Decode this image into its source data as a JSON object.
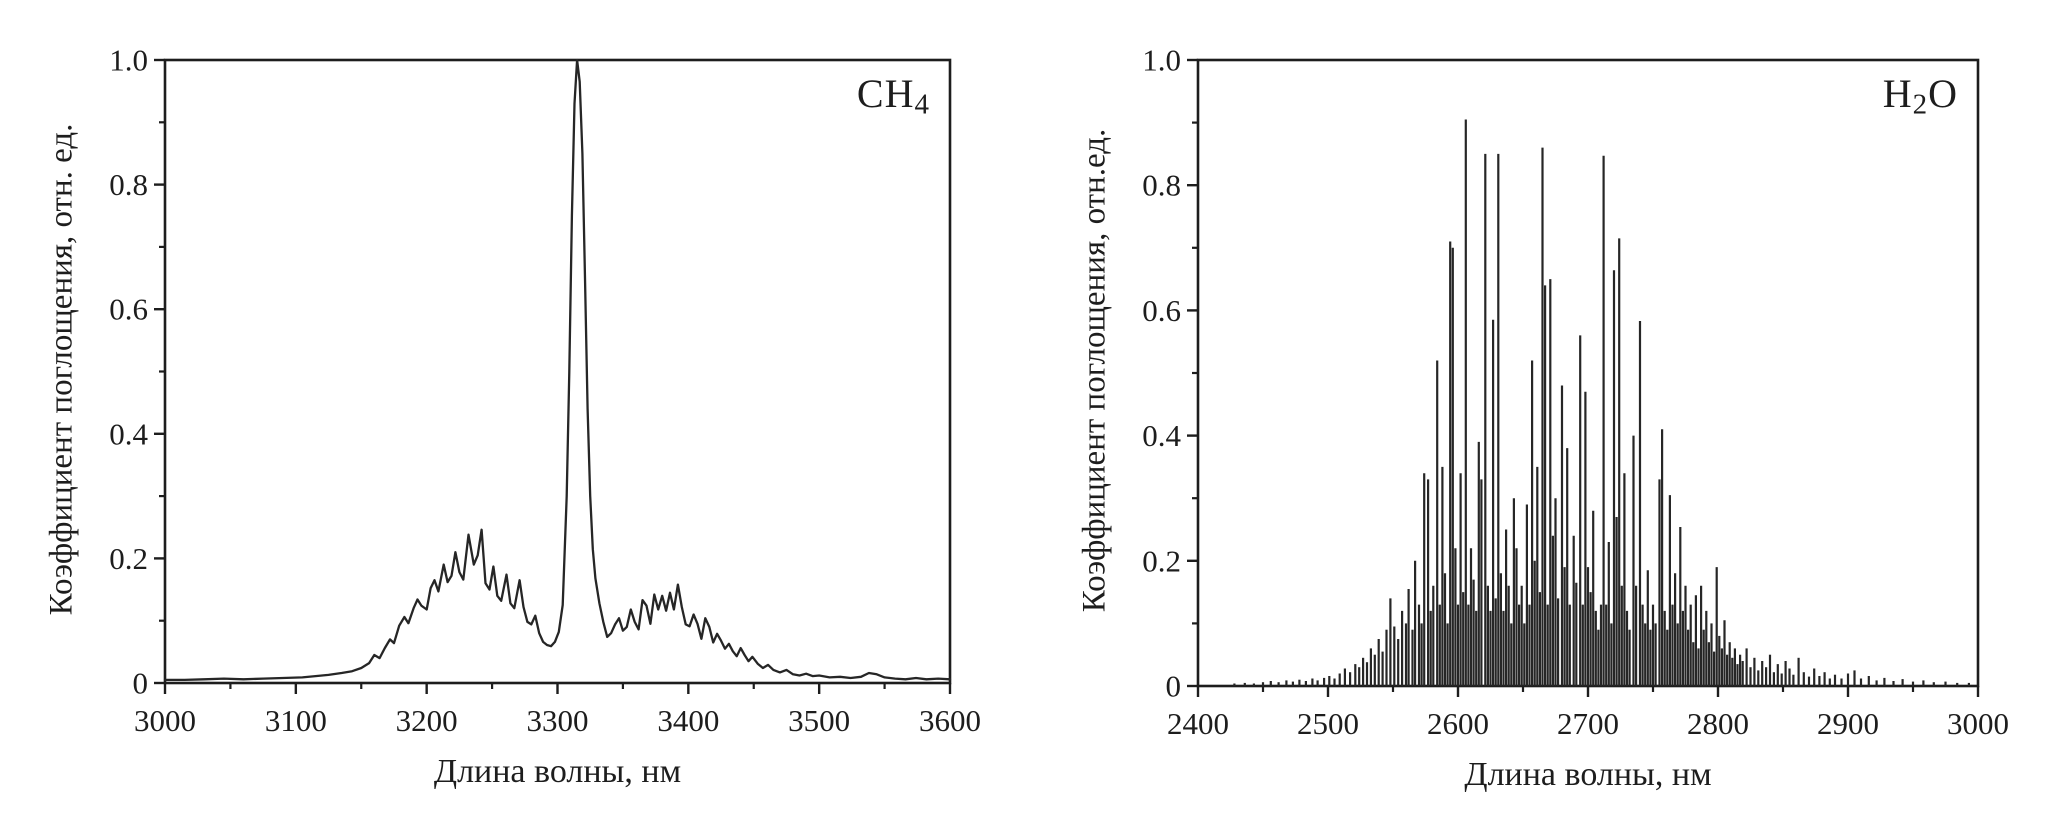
{
  "meta": {
    "background": "#ffffff",
    "ink": "#1d1d1d",
    "curve_color": "#262626"
  },
  "chart_data": [
    {
      "id": "ch4",
      "type": "line",
      "corner_label": {
        "pre": "CH",
        "sub": "4",
        "post": ""
      },
      "xlabel": "Длина волны, нм",
      "ylabel": "Коэффициент поглощения, отн. ед.",
      "xlim": [
        3000,
        3600
      ],
      "ylim": [
        0,
        1.0
      ],
      "x_major_ticks": [
        3000,
        3100,
        3200,
        3300,
        3400,
        3500,
        3600
      ],
      "x_minor_step": 50,
      "y_major_ticks": [
        0,
        0.2,
        0.4,
        0.6,
        0.8,
        1.0
      ],
      "y_tick_labels": [
        "0",
        "0.2",
        "0.4",
        "0.6",
        "0.8",
        "1.0"
      ],
      "y_minor_step": 0.1,
      "grid": false,
      "points": [
        [
          3000,
          0.005
        ],
        [
          3015,
          0.005
        ],
        [
          3030,
          0.006
        ],
        [
          3045,
          0.007
        ],
        [
          3060,
          0.006
        ],
        [
          3075,
          0.007
        ],
        [
          3090,
          0.008
        ],
        [
          3105,
          0.009
        ],
        [
          3115,
          0.011
        ],
        [
          3125,
          0.013
        ],
        [
          3135,
          0.016
        ],
        [
          3143,
          0.019
        ],
        [
          3150,
          0.024
        ],
        [
          3156,
          0.032
        ],
        [
          3160,
          0.045
        ],
        [
          3164,
          0.04
        ],
        [
          3168,
          0.056
        ],
        [
          3172,
          0.07
        ],
        [
          3175,
          0.064
        ],
        [
          3179,
          0.092
        ],
        [
          3183,
          0.106
        ],
        [
          3186,
          0.096
        ],
        [
          3190,
          0.12
        ],
        [
          3193,
          0.134
        ],
        [
          3196,
          0.124
        ],
        [
          3200,
          0.118
        ],
        [
          3203,
          0.152
        ],
        [
          3206,
          0.165
        ],
        [
          3209,
          0.147
        ],
        [
          3213,
          0.19
        ],
        [
          3216,
          0.162
        ],
        [
          3219,
          0.172
        ],
        [
          3222,
          0.21
        ],
        [
          3225,
          0.178
        ],
        [
          3228,
          0.166
        ],
        [
          3232,
          0.238
        ],
        [
          3236,
          0.19
        ],
        [
          3239,
          0.205
        ],
        [
          3242,
          0.246
        ],
        [
          3245,
          0.16
        ],
        [
          3248,
          0.15
        ],
        [
          3251,
          0.187
        ],
        [
          3254,
          0.14
        ],
        [
          3257,
          0.132
        ],
        [
          3261,
          0.174
        ],
        [
          3264,
          0.128
        ],
        [
          3267,
          0.12
        ],
        [
          3271,
          0.165
        ],
        [
          3274,
          0.122
        ],
        [
          3277,
          0.098
        ],
        [
          3280,
          0.094
        ],
        [
          3283,
          0.108
        ],
        [
          3286,
          0.08
        ],
        [
          3289,
          0.066
        ],
        [
          3292,
          0.061
        ],
        [
          3295,
          0.059
        ],
        [
          3298,
          0.066
        ],
        [
          3301,
          0.082
        ],
        [
          3304,
          0.125
        ],
        [
          3307,
          0.3
        ],
        [
          3309,
          0.5
        ],
        [
          3311,
          0.75
        ],
        [
          3313,
          0.93
        ],
        [
          3315,
          1.0
        ],
        [
          3317,
          0.965
        ],
        [
          3319,
          0.85
        ],
        [
          3321,
          0.65
        ],
        [
          3323,
          0.44
        ],
        [
          3325,
          0.3
        ],
        [
          3327,
          0.215
        ],
        [
          3329,
          0.168
        ],
        [
          3332,
          0.128
        ],
        [
          3335,
          0.098
        ],
        [
          3338,
          0.074
        ],
        [
          3341,
          0.08
        ],
        [
          3344,
          0.094
        ],
        [
          3347,
          0.104
        ],
        [
          3350,
          0.084
        ],
        [
          3353,
          0.09
        ],
        [
          3356,
          0.118
        ],
        [
          3359,
          0.098
        ],
        [
          3362,
          0.086
        ],
        [
          3365,
          0.133
        ],
        [
          3368,
          0.124
        ],
        [
          3371,
          0.095
        ],
        [
          3374,
          0.142
        ],
        [
          3377,
          0.118
        ],
        [
          3380,
          0.14
        ],
        [
          3383,
          0.116
        ],
        [
          3386,
          0.145
        ],
        [
          3389,
          0.118
        ],
        [
          3392,
          0.158
        ],
        [
          3395,
          0.122
        ],
        [
          3398,
          0.094
        ],
        [
          3401,
          0.091
        ],
        [
          3404,
          0.11
        ],
        [
          3407,
          0.095
        ],
        [
          3410,
          0.071
        ],
        [
          3413,
          0.104
        ],
        [
          3416,
          0.09
        ],
        [
          3419,
          0.065
        ],
        [
          3422,
          0.079
        ],
        [
          3425,
          0.068
        ],
        [
          3428,
          0.055
        ],
        [
          3431,
          0.063
        ],
        [
          3434,
          0.051
        ],
        [
          3437,
          0.043
        ],
        [
          3440,
          0.056
        ],
        [
          3443,
          0.045
        ],
        [
          3446,
          0.035
        ],
        [
          3449,
          0.042
        ],
        [
          3453,
          0.031
        ],
        [
          3457,
          0.024
        ],
        [
          3461,
          0.029
        ],
        [
          3465,
          0.021
        ],
        [
          3470,
          0.017
        ],
        [
          3475,
          0.021
        ],
        [
          3480,
          0.014
        ],
        [
          3485,
          0.012
        ],
        [
          3490,
          0.015
        ],
        [
          3495,
          0.011
        ],
        [
          3500,
          0.012
        ],
        [
          3508,
          0.009
        ],
        [
          3516,
          0.01
        ],
        [
          3524,
          0.008
        ],
        [
          3532,
          0.01
        ],
        [
          3538,
          0.016
        ],
        [
          3544,
          0.014
        ],
        [
          3550,
          0.009
        ],
        [
          3558,
          0.007
        ],
        [
          3566,
          0.006
        ],
        [
          3574,
          0.008
        ],
        [
          3582,
          0.006
        ],
        [
          3591,
          0.007
        ],
        [
          3600,
          0.006
        ]
      ]
    },
    {
      "id": "h2o",
      "type": "stick",
      "corner_label": {
        "pre": "H",
        "sub": "2",
        "post": "O"
      },
      "xlabel": "Длина волны, нм",
      "ylabel": "Коэффициент поглощения, отн.ед.",
      "xlim": [
        2400,
        3000
      ],
      "ylim": [
        0,
        1.0
      ],
      "x_major_ticks": [
        2400,
        2500,
        2600,
        2700,
        2800,
        2900,
        3000
      ],
      "x_minor_step": 50,
      "y_major_ticks": [
        0,
        0.2,
        0.4,
        0.6,
        0.8,
        1.0
      ],
      "y_tick_labels": [
        "0",
        "0.2",
        "0.4",
        "0.6",
        "0.8",
        "1.0"
      ],
      "y_minor_step": 0.1,
      "grid": false,
      "lines": [
        [
          2428,
          0.004
        ],
        [
          2436,
          0.005
        ],
        [
          2443,
          0.004
        ],
        [
          2450,
          0.006
        ],
        [
          2456,
          0.008
        ],
        [
          2462,
          0.006
        ],
        [
          2468,
          0.009
        ],
        [
          2473,
          0.007
        ],
        [
          2478,
          0.01
        ],
        [
          2483,
          0.008
        ],
        [
          2488,
          0.012
        ],
        [
          2492,
          0.009
        ],
        [
          2497,
          0.013
        ],
        [
          2501,
          0.016
        ],
        [
          2505,
          0.012
        ],
        [
          2509,
          0.02
        ],
        [
          2513,
          0.028
        ],
        [
          2517,
          0.022
        ],
        [
          2521,
          0.035
        ],
        [
          2524,
          0.03
        ],
        [
          2527,
          0.045
        ],
        [
          2530,
          0.038
        ],
        [
          2533,
          0.06
        ],
        [
          2536,
          0.05
        ],
        [
          2539,
          0.075
        ],
        [
          2542,
          0.055
        ],
        [
          2545,
          0.09
        ],
        [
          2548,
          0.14
        ],
        [
          2551,
          0.095
        ],
        [
          2554,
          0.075
        ],
        [
          2557,
          0.12
        ],
        [
          2560,
          0.1
        ],
        [
          2562,
          0.155
        ],
        [
          2565,
          0.09
        ],
        [
          2567,
          0.2
        ],
        [
          2570,
          0.13
        ],
        [
          2572,
          0.1
        ],
        [
          2574,
          0.34
        ],
        [
          2577,
          0.33
        ],
        [
          2579,
          0.12
        ],
        [
          2581,
          0.16
        ],
        [
          2584,
          0.52
        ],
        [
          2586,
          0.13
        ],
        [
          2588,
          0.35
        ],
        [
          2590,
          0.18
        ],
        [
          2592,
          0.1
        ],
        [
          2594,
          0.71
        ],
        [
          2596,
          0.7
        ],
        [
          2598,
          0.22
        ],
        [
          2600,
          0.13
        ],
        [
          2602,
          0.34
        ],
        [
          2604,
          0.15
        ],
        [
          2606,
          0.905
        ],
        [
          2608,
          0.13
        ],
        [
          2610,
          0.22
        ],
        [
          2612,
          0.17
        ],
        [
          2614,
          0.12
        ],
        [
          2616,
          0.39
        ],
        [
          2618,
          0.33
        ],
        [
          2621,
          0.85
        ],
        [
          2623,
          0.16
        ],
        [
          2625,
          0.12
        ],
        [
          2627,
          0.585
        ],
        [
          2629,
          0.14
        ],
        [
          2631,
          0.85
        ],
        [
          2633,
          0.18
        ],
        [
          2635,
          0.12
        ],
        [
          2637,
          0.25
        ],
        [
          2639,
          0.16
        ],
        [
          2641,
          0.1
        ],
        [
          2643,
          0.3
        ],
        [
          2645,
          0.22
        ],
        [
          2647,
          0.13
        ],
        [
          2649,
          0.16
        ],
        [
          2651,
          0.1
        ],
        [
          2653,
          0.29
        ],
        [
          2655,
          0.13
        ],
        [
          2657,
          0.52
        ],
        [
          2659,
          0.2
        ],
        [
          2661,
          0.35
        ],
        [
          2663,
          0.15
        ],
        [
          2665,
          0.86
        ],
        [
          2667,
          0.64
        ],
        [
          2669,
          0.13
        ],
        [
          2671,
          0.65
        ],
        [
          2673,
          0.24
        ],
        [
          2675,
          0.3
        ],
        [
          2677,
          0.14
        ],
        [
          2680,
          0.48
        ],
        [
          2682,
          0.19
        ],
        [
          2684,
          0.38
        ],
        [
          2686,
          0.13
        ],
        [
          2689,
          0.24
        ],
        [
          2691,
          0.165
        ],
        [
          2694,
          0.56
        ],
        [
          2696,
          0.13
        ],
        [
          2698,
          0.47
        ],
        [
          2700,
          0.19
        ],
        [
          2702,
          0.15
        ],
        [
          2704,
          0.28
        ],
        [
          2706,
          0.12
        ],
        [
          2708,
          0.09
        ],
        [
          2710,
          0.13
        ],
        [
          2712,
          0.847
        ],
        [
          2714,
          0.13
        ],
        [
          2716,
          0.23
        ],
        [
          2718,
          0.1
        ],
        [
          2720,
          0.664
        ],
        [
          2722,
          0.27
        ],
        [
          2724,
          0.715
        ],
        [
          2726,
          0.16
        ],
        [
          2728,
          0.34
        ],
        [
          2730,
          0.12
        ],
        [
          2732,
          0.09
        ],
        [
          2735,
          0.4
        ],
        [
          2737,
          0.16
        ],
        [
          2740,
          0.583
        ],
        [
          2742,
          0.13
        ],
        [
          2744,
          0.1
        ],
        [
          2746,
          0.185
        ],
        [
          2748,
          0.09
        ],
        [
          2750,
          0.13
        ],
        [
          2752,
          0.1
        ],
        [
          2755,
          0.33
        ],
        [
          2757,
          0.41
        ],
        [
          2759,
          0.12
        ],
        [
          2761,
          0.09
        ],
        [
          2763,
          0.305
        ],
        [
          2765,
          0.13
        ],
        [
          2767,
          0.18
        ],
        [
          2769,
          0.1
        ],
        [
          2771,
          0.254
        ],
        [
          2773,
          0.12
        ],
        [
          2775,
          0.16
        ],
        [
          2777,
          0.09
        ],
        [
          2779,
          0.13
        ],
        [
          2781,
          0.07
        ],
        [
          2783,
          0.145
        ],
        [
          2785,
          0.06
        ],
        [
          2787,
          0.16
        ],
        [
          2789,
          0.09
        ],
        [
          2791,
          0.12
        ],
        [
          2793,
          0.07
        ],
        [
          2795,
          0.1
        ],
        [
          2797,
          0.055
        ],
        [
          2799,
          0.19
        ],
        [
          2801,
          0.08
        ],
        [
          2803,
          0.06
        ],
        [
          2805,
          0.105
        ],
        [
          2807,
          0.05
        ],
        [
          2809,
          0.07
        ],
        [
          2811,
          0.045
        ],
        [
          2813,
          0.06
        ],
        [
          2815,
          0.035
        ],
        [
          2817,
          0.05
        ],
        [
          2819,
          0.04
        ],
        [
          2822,
          0.06
        ],
        [
          2825,
          0.03
        ],
        [
          2828,
          0.045
        ],
        [
          2831,
          0.025
        ],
        [
          2834,
          0.04
        ],
        [
          2837,
          0.03
        ],
        [
          2840,
          0.05
        ],
        [
          2843,
          0.022
        ],
        [
          2846,
          0.035
        ],
        [
          2849,
          0.02
        ],
        [
          2852,
          0.04
        ],
        [
          2855,
          0.028
        ],
        [
          2858,
          0.018
        ],
        [
          2862,
          0.045
        ],
        [
          2866,
          0.022
        ],
        [
          2870,
          0.015
        ],
        [
          2874,
          0.028
        ],
        [
          2878,
          0.016
        ],
        [
          2882,
          0.022
        ],
        [
          2886,
          0.012
        ],
        [
          2890,
          0.018
        ],
        [
          2895,
          0.012
        ],
        [
          2900,
          0.02
        ],
        [
          2905,
          0.025
        ],
        [
          2910,
          0.012
        ],
        [
          2916,
          0.016
        ],
        [
          2922,
          0.009
        ],
        [
          2928,
          0.013
        ],
        [
          2935,
          0.008
        ],
        [
          2942,
          0.011
        ],
        [
          2950,
          0.007
        ],
        [
          2958,
          0.009
        ],
        [
          2966,
          0.006
        ],
        [
          2975,
          0.007
        ],
        [
          2984,
          0.005
        ],
        [
          2993,
          0.005
        ]
      ]
    }
  ]
}
